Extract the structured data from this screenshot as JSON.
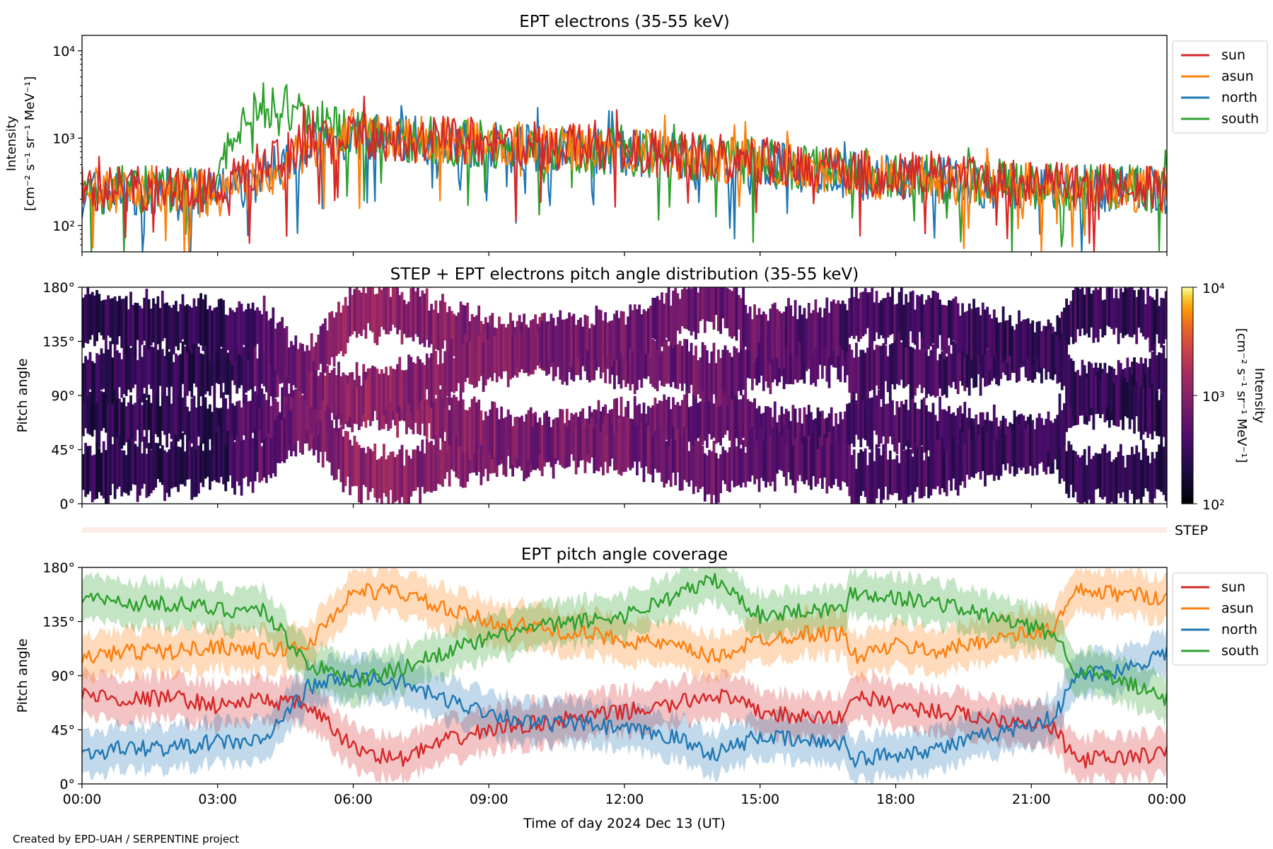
{
  "figure": {
    "footer": "Created by EPD-UAH / SERPENTINE project",
    "xlabel": "Time of day 2024 Dec 13 (UT)",
    "xticks": [
      "00:00",
      "03:00",
      "06:00",
      "09:00",
      "12:00",
      "15:00",
      "18:00",
      "21:00",
      "00:00"
    ]
  },
  "colors": {
    "sun": "#d62728",
    "asun": "#ff7f0e",
    "north": "#1f77b4",
    "south": "#2ca02c"
  },
  "chart_data": [
    {
      "type": "line",
      "title": "EPT electrons (35-55 keV)",
      "ylabel_line1": "Intensity",
      "ylabel_line2": "[cm⁻² s⁻¹ sr⁻¹ MeV⁻¹]",
      "yscale": "log",
      "ylim": [
        50,
        15000
      ],
      "yticks": [
        "10²",
        "10³",
        "10⁴"
      ],
      "x_range_hours": [
        0,
        24
      ],
      "legend": {
        "position": "outside-right",
        "entries": [
          "sun",
          "asun",
          "north",
          "south"
        ]
      },
      "series": [
        {
          "name": "sun",
          "envelope_hours": [
            0,
            1,
            2,
            3,
            4,
            5,
            6,
            7,
            8,
            9,
            10,
            12,
            14,
            15,
            16,
            17,
            18,
            20,
            22,
            24
          ],
          "envelope_values": [
            250,
            270,
            270,
            260,
            500,
            850,
            1100,
            1000,
            950,
            880,
            820,
            720,
            600,
            560,
            460,
            420,
            380,
            320,
            290,
            270
          ]
        },
        {
          "name": "asun",
          "envelope_hours": [
            0,
            1,
            2,
            3,
            4,
            5,
            6,
            7,
            8,
            9,
            10,
            12,
            14,
            15,
            16,
            17,
            18,
            20,
            22,
            24
          ],
          "envelope_values": [
            240,
            260,
            260,
            230,
            300,
            700,
            1150,
            1050,
            950,
            880,
            800,
            700,
            580,
            540,
            450,
            400,
            360,
            310,
            280,
            260
          ]
        },
        {
          "name": "north",
          "envelope_hours": [
            0,
            1,
            2,
            3,
            4,
            5,
            6,
            7,
            8,
            9,
            10,
            12,
            14,
            15,
            16,
            17,
            18,
            20,
            22,
            24
          ],
          "envelope_values": [
            230,
            250,
            250,
            230,
            350,
            800,
            1050,
            980,
            900,
            840,
            780,
            680,
            560,
            520,
            430,
            380,
            340,
            300,
            270,
            250
          ]
        },
        {
          "name": "south",
          "envelope_hours": [
            0,
            1,
            2,
            3,
            3.5,
            4,
            4.5,
            5,
            6,
            7,
            8,
            9,
            10,
            12,
            14,
            15,
            16,
            17,
            18,
            20,
            22,
            24
          ],
          "envelope_values": [
            240,
            260,
            250,
            240,
            1200,
            2300,
            2200,
            1600,
            1100,
            1000,
            920,
            860,
            800,
            700,
            580,
            540,
            450,
            400,
            360,
            310,
            280,
            260
          ]
        }
      ]
    },
    {
      "type": "heatmap",
      "title": "STEP + EPT electrons pitch angle distribution (35-55 keV)",
      "ylabel": "Pitch angle",
      "yticks": [
        "0°",
        "45°",
        "90°",
        "135°",
        "180°"
      ],
      "ylim": [
        0,
        180
      ],
      "colorbar": {
        "label_line1": "Intensity",
        "label_line2": "[cm⁻² s⁻¹ sr⁻¹ MeV⁻¹]",
        "scale": "log",
        "range": [
          100,
          10000
        ],
        "ticks": [
          "10²",
          "10³",
          "10⁴"
        ]
      },
      "side_label": "STEP"
    },
    {
      "type": "line",
      "title": "EPT pitch angle coverage",
      "ylabel": "Pitch angle",
      "ylim": [
        0,
        180
      ],
      "yticks": [
        "0°",
        "45°",
        "90°",
        "135°",
        "180°"
      ],
      "legend": {
        "position": "outside-right",
        "entries": [
          "sun",
          "asun",
          "north",
          "south"
        ]
      },
      "hours": [
        0,
        1,
        2,
        3,
        4,
        5,
        6,
        7,
        8,
        9,
        10,
        11,
        12,
        13,
        14,
        15,
        16,
        16.9,
        17,
        18,
        19,
        20,
        21,
        21.5,
        22,
        23,
        24
      ],
      "series": [
        {
          "name": "sun",
          "values": [
            75,
            70,
            72,
            65,
            70,
            65,
            30,
            20,
            35,
            45,
            50,
            55,
            60,
            65,
            75,
            60,
            55,
            55,
            75,
            65,
            60,
            55,
            52,
            45,
            20,
            22,
            25
          ]
        },
        {
          "name": "asun",
          "values": [
            105,
            110,
            110,
            115,
            110,
            115,
            160,
            160,
            145,
            135,
            130,
            125,
            120,
            115,
            105,
            120,
            125,
            125,
            105,
            115,
            110,
            120,
            125,
            130,
            160,
            158,
            155
          ]
        },
        {
          "name": "north",
          "values": [
            25,
            30,
            30,
            35,
            35,
            80,
            90,
            85,
            70,
            60,
            50,
            50,
            45,
            40,
            25,
            40,
            35,
            35,
            20,
            25,
            30,
            40,
            50,
            55,
            90,
            95,
            110
          ]
        },
        {
          "name": "south",
          "values": [
            155,
            150,
            150,
            145,
            145,
            100,
            85,
            95,
            110,
            120,
            130,
            135,
            140,
            155,
            170,
            140,
            145,
            145,
            160,
            155,
            150,
            140,
            130,
            125,
            95,
            85,
            70
          ]
        }
      ]
    }
  ]
}
